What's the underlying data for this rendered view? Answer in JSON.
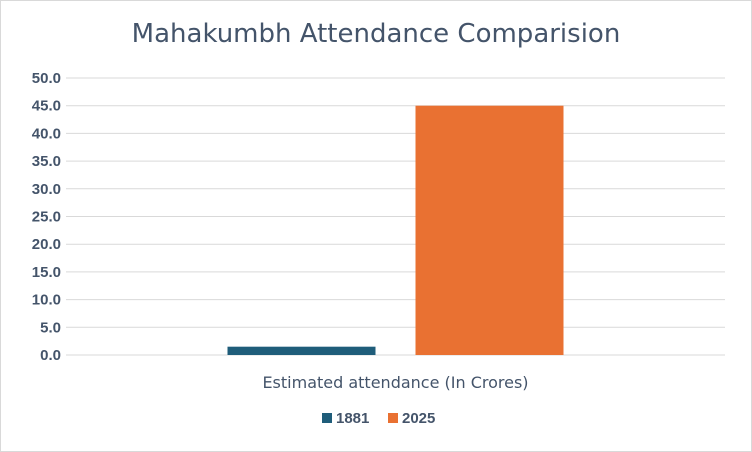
{
  "chart_data": {
    "type": "bar",
    "title": "Mahakumbh Attendance Comparision",
    "categories": [
      "Estimated attendance (In Crores)"
    ],
    "series": [
      {
        "name": "1881",
        "values": [
          1.5
        ],
        "color": "#1f5d7a"
      },
      {
        "name": "2025",
        "values": [
          45.0
        ],
        "color": "#e97132"
      }
    ],
    "xlabel": "",
    "ylabel": "",
    "ylim": [
      0,
      50
    ],
    "yticks": [
      "0.0",
      "5.0",
      "10.0",
      "15.0",
      "20.0",
      "25.0",
      "30.0",
      "35.0",
      "40.0",
      "45.0",
      "50.0"
    ],
    "grid": true,
    "legend_position": "bottom",
    "gridline_color": "#d9d9d9"
  }
}
